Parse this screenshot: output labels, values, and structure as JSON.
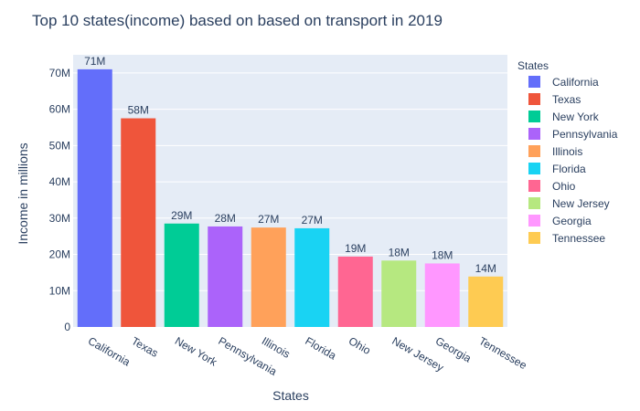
{
  "chart_data": {
    "type": "bar",
    "title": "Top 10 states(income) based on based on transport in 2019",
    "xlabel": "States",
    "ylabel": "Income in millions",
    "ylim": [
      0,
      75
    ],
    "y_ticks": [
      0,
      10,
      20,
      30,
      40,
      50,
      60,
      70
    ],
    "y_tick_labels": [
      "0",
      "10M",
      "20M",
      "30M",
      "40M",
      "50M",
      "60M",
      "70M"
    ],
    "grid": true,
    "legend_title": "States",
    "legend_position": "right",
    "categories": [
      "California",
      "Texas",
      "New York",
      "Pennsylvania",
      "Illinois",
      "Florida",
      "Ohio",
      "New Jersey",
      "Georgia",
      "Tennessee"
    ],
    "values": [
      71,
      57.5,
      28.5,
      27.7,
      27.4,
      27.2,
      19.4,
      18.3,
      17.5,
      13.9
    ],
    "value_labels": [
      "71M",
      "58M",
      "29M",
      "28M",
      "27M",
      "27M",
      "19M",
      "18M",
      "18M",
      "14M"
    ],
    "colors": [
      "#636efa",
      "#ef553b",
      "#00cc96",
      "#ab63fa",
      "#ffa15a",
      "#19d3f3",
      "#ff6692",
      "#b6e880",
      "#ff97ff",
      "#fecb52"
    ]
  }
}
